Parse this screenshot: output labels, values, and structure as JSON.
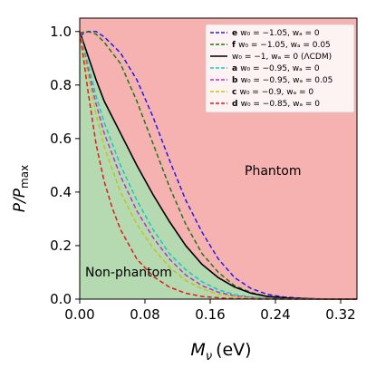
{
  "chart_data": {
    "type": "line",
    "title": "",
    "xlabel_main": "M",
    "xlabel_sub": "ν",
    "xlabel_unit": "(eV)",
    "ylabel_main": "P/P",
    "ylabel_sub": "max",
    "xlim": [
      0.0,
      0.34
    ],
    "ylim": [
      0.0,
      1.05
    ],
    "xticks": [
      "0.00",
      "0.08",
      "0.16",
      "0.24",
      "0.32"
    ],
    "xtick_values": [
      0.0,
      0.08,
      0.16,
      0.24,
      0.32
    ],
    "yticks": [
      "0.0",
      "0.2",
      "0.4",
      "0.6",
      "0.8",
      "1.0"
    ],
    "ytick_values": [
      0.0,
      0.2,
      0.4,
      0.6,
      0.8,
      1.0
    ],
    "regions": [
      {
        "name": "Phantom",
        "color": "#f6b1b1"
      },
      {
        "name": "Non-phantom",
        "color": "#b5d9b0"
      }
    ],
    "legend_position": "top-right",
    "series": [
      {
        "key": "e",
        "label": "w₀ = −1.05, wₐ = 0",
        "color": "#1f1fe6",
        "style": "dashed",
        "x": [
          0.0,
          0.01,
          0.02,
          0.03,
          0.05,
          0.07,
          0.09,
          0.11,
          0.13,
          0.15,
          0.17,
          0.19,
          0.21,
          0.23,
          0.25,
          0.28,
          0.31,
          0.34
        ],
        "y": [
          0.985,
          1.0,
          1.0,
          0.98,
          0.92,
          0.82,
          0.68,
          0.52,
          0.37,
          0.25,
          0.15,
          0.08,
          0.04,
          0.018,
          0.008,
          0.002,
          0.0,
          0.0
        ]
      },
      {
        "key": "f",
        "label": "w₀ = −1.05, wₐ = 0.05",
        "color": "#1a7a1a",
        "style": "dashed",
        "x": [
          0.0,
          0.01,
          0.02,
          0.03,
          0.05,
          0.07,
          0.09,
          0.11,
          0.13,
          0.15,
          0.17,
          0.19,
          0.21,
          0.23,
          0.26,
          0.3,
          0.34
        ],
        "y": [
          0.995,
          1.0,
          0.99,
          0.96,
          0.88,
          0.74,
          0.58,
          0.42,
          0.28,
          0.17,
          0.1,
          0.05,
          0.025,
          0.01,
          0.003,
          0.0,
          0.0
        ]
      },
      {
        "key": "",
        "label": "w₀ = −1, wₐ = 0 (ΛCDM)",
        "color": "#000000",
        "style": "solid",
        "x": [
          0.0,
          0.01,
          0.02,
          0.03,
          0.05,
          0.07,
          0.09,
          0.11,
          0.13,
          0.15,
          0.17,
          0.19,
          0.21,
          0.23,
          0.26,
          0.3,
          0.34
        ],
        "y": [
          1.0,
          0.91,
          0.82,
          0.74,
          0.62,
          0.5,
          0.39,
          0.29,
          0.2,
          0.13,
          0.08,
          0.045,
          0.022,
          0.01,
          0.003,
          0.0,
          0.0
        ]
      },
      {
        "key": "a",
        "label": "w₀ = −0.95, wₐ = 0",
        "color": "#17c7c7",
        "style": "dashed",
        "x": [
          0.0,
          0.01,
          0.02,
          0.03,
          0.05,
          0.07,
          0.09,
          0.11,
          0.13,
          0.15,
          0.17,
          0.19,
          0.21,
          0.24,
          0.28,
          0.34
        ],
        "y": [
          1.0,
          0.88,
          0.76,
          0.66,
          0.5,
          0.37,
          0.26,
          0.17,
          0.11,
          0.065,
          0.035,
          0.017,
          0.008,
          0.002,
          0.0,
          0.0
        ]
      },
      {
        "key": "b",
        "label": "w₀ = −0.95, wₐ = 0.05",
        "color": "#c02fc0",
        "style": "dashed",
        "x": [
          0.0,
          0.01,
          0.02,
          0.03,
          0.05,
          0.07,
          0.09,
          0.11,
          0.13,
          0.15,
          0.17,
          0.19,
          0.22,
          0.26,
          0.34
        ],
        "y": [
          1.0,
          0.86,
          0.73,
          0.62,
          0.46,
          0.33,
          0.23,
          0.15,
          0.09,
          0.05,
          0.026,
          0.012,
          0.004,
          0.0,
          0.0
        ]
      },
      {
        "key": "c",
        "label": "w₀ = −0.9, wₐ = 0",
        "color": "#c9c21a",
        "style": "dashed",
        "x": [
          0.0,
          0.01,
          0.02,
          0.03,
          0.05,
          0.07,
          0.09,
          0.11,
          0.13,
          0.15,
          0.17,
          0.2,
          0.24,
          0.34
        ],
        "y": [
          1.0,
          0.84,
          0.69,
          0.57,
          0.4,
          0.28,
          0.19,
          0.12,
          0.07,
          0.038,
          0.018,
          0.005,
          0.0,
          0.0
        ]
      },
      {
        "key": "d",
        "label": "w₀ = −0.85, wₐ = 0",
        "color": "#e01b1b",
        "style": "dashed",
        "x": [
          0.0,
          0.01,
          0.02,
          0.03,
          0.04,
          0.05,
          0.07,
          0.09,
          0.11,
          0.13,
          0.15,
          0.18,
          0.22,
          0.34
        ],
        "y": [
          1.0,
          0.78,
          0.58,
          0.44,
          0.34,
          0.26,
          0.15,
          0.085,
          0.045,
          0.022,
          0.01,
          0.003,
          0.0,
          0.0
        ]
      }
    ]
  }
}
